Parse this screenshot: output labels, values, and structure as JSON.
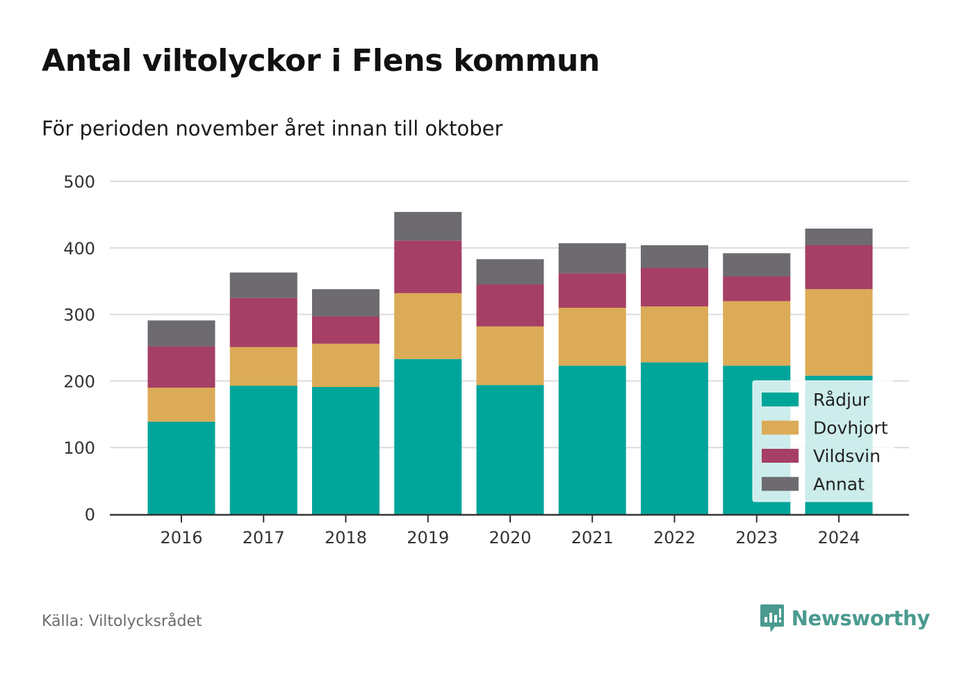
{
  "title": "Antal viltolyckor i Flens kommun",
  "subtitle": "För perioden november året innan till oktober",
  "source": "Källa: Viltolycksrådet",
  "brand": {
    "name": "Newsworthy",
    "icon": "newsworthy-logo-icon",
    "color": "#4a9a8f"
  },
  "chart_data": {
    "type": "bar",
    "stacked": true,
    "categories": [
      "2016",
      "2017",
      "2018",
      "2019",
      "2020",
      "2021",
      "2022",
      "2023",
      "2024"
    ],
    "series": [
      {
        "name": "Rådjur",
        "color": "#00a59a",
        "values": [
          139,
          193,
          191,
          233,
          194,
          223,
          228,
          223,
          208
        ]
      },
      {
        "name": "Dovhjort",
        "color": "#dcab57",
        "values": [
          51,
          58,
          65,
          99,
          88,
          87,
          84,
          97,
          130
        ]
      },
      {
        "name": "Vildsvin",
        "color": "#a63f65",
        "values": [
          62,
          74,
          41,
          79,
          63,
          52,
          58,
          37,
          66
        ]
      },
      {
        "name": "Annat",
        "color": "#6d6b70",
        "values": [
          39,
          38,
          41,
          43,
          38,
          45,
          34,
          35,
          25
        ]
      }
    ],
    "ylim": [
      0,
      500
    ],
    "yticks": [
      0,
      100,
      200,
      300,
      400,
      500
    ],
    "xlabel": "",
    "ylabel": "",
    "grid": true,
    "legend_position": "bottom-right"
  }
}
